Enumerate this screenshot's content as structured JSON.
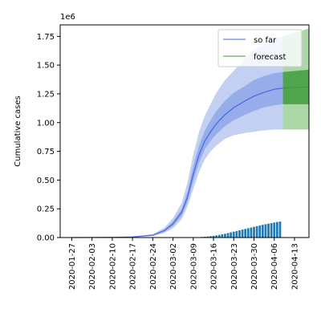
{
  "chart_data": {
    "type": "line",
    "title": "",
    "xlabel": "",
    "ylabel": "Cumulative cases",
    "y_offset_text": "1e6",
    "xlim": [
      -4,
      82
    ],
    "ylim": [
      0,
      1.85
    ],
    "x_ticks": [
      {
        "day": 0,
        "label": "2020-01-27"
      },
      {
        "day": 7,
        "label": "2020-02-03"
      },
      {
        "day": 14,
        "label": "2020-02-10"
      },
      {
        "day": 21,
        "label": "2020-02-17"
      },
      {
        "day": 28,
        "label": "2020-02-24"
      },
      {
        "day": 35,
        "label": "2020-03-02"
      },
      {
        "day": 42,
        "label": "2020-03-09"
      },
      {
        "day": 49,
        "label": "2020-03-16"
      },
      {
        "day": 56,
        "label": "2020-03-23"
      },
      {
        "day": 63,
        "label": "2020-03-30"
      },
      {
        "day": 70,
        "label": "2020-04-06"
      },
      {
        "day": 77,
        "label": "2020-04-13"
      }
    ],
    "y_ticks": [
      {
        "value": 0.0,
        "label": "0.00"
      },
      {
        "value": 0.25,
        "label": "0.25"
      },
      {
        "value": 0.5,
        "label": "0.50"
      },
      {
        "value": 0.75,
        "label": "0.75"
      },
      {
        "value": 1.0,
        "label": "1.00"
      },
      {
        "value": 1.25,
        "label": "1.25"
      },
      {
        "value": 1.5,
        "label": "1.50"
      },
      {
        "value": 1.75,
        "label": "1.75"
      }
    ],
    "model_days": [
      0,
      7,
      14,
      21,
      28,
      32,
      35,
      38,
      40,
      42,
      44,
      46,
      48,
      50,
      53,
      56,
      60,
      63,
      66,
      70,
      73
    ],
    "median": [
      0,
      0.001,
      0.002,
      0.005,
      0.02,
      0.06,
      0.12,
      0.22,
      0.35,
      0.55,
      0.72,
      0.84,
      0.92,
      0.99,
      1.07,
      1.13,
      1.19,
      1.23,
      1.26,
      1.29,
      1.3
    ],
    "inner_lower": [
      0,
      0.0008,
      0.0016,
      0.004,
      0.017,
      0.05,
      0.1,
      0.19,
      0.31,
      0.49,
      0.65,
      0.77,
      0.84,
      0.9,
      0.97,
      1.02,
      1.07,
      1.1,
      1.13,
      1.15,
      1.16
    ],
    "inner_upper": [
      0,
      0.0012,
      0.0024,
      0.006,
      0.024,
      0.07,
      0.14,
      0.25,
      0.4,
      0.62,
      0.8,
      0.93,
      1.02,
      1.1,
      1.19,
      1.26,
      1.32,
      1.37,
      1.4,
      1.43,
      1.44
    ],
    "outer_lower": [
      0,
      0.0005,
      0.001,
      0.003,
      0.013,
      0.04,
      0.08,
      0.16,
      0.27,
      0.42,
      0.57,
      0.68,
      0.75,
      0.8,
      0.86,
      0.89,
      0.91,
      0.92,
      0.93,
      0.94,
      0.94
    ],
    "outer_upper": [
      0,
      0.0015,
      0.003,
      0.008,
      0.03,
      0.085,
      0.17,
      0.3,
      0.48,
      0.72,
      0.92,
      1.06,
      1.16,
      1.26,
      1.37,
      1.45,
      1.56,
      1.63,
      1.68,
      1.73,
      1.75
    ],
    "forecast": {
      "x_start": 73,
      "x_end": 82,
      "outer_lower": 0.94,
      "outer_upper_start": 1.75,
      "outer_upper_end": 1.82,
      "inner_lower": 1.16,
      "inner_upper_start": 1.44,
      "inner_upper_end": 1.46,
      "median_start": 1.3,
      "median_end": 1.31
    },
    "observed": {
      "days": [
        42,
        43,
        44,
        45,
        46,
        47,
        48,
        49,
        50,
        51,
        52,
        53,
        54,
        55,
        56,
        57,
        58,
        59,
        60,
        61,
        62,
        63,
        64,
        65,
        66,
        67,
        68,
        69,
        70,
        71,
        72
      ],
      "values": [
        0.001,
        0.002,
        0.003,
        0.005,
        0.007,
        0.009,
        0.012,
        0.015,
        0.019,
        0.023,
        0.028,
        0.033,
        0.039,
        0.045,
        0.051,
        0.057,
        0.063,
        0.069,
        0.075,
        0.081,
        0.087,
        0.093,
        0.099,
        0.105,
        0.11,
        0.116,
        0.121,
        0.126,
        0.131,
        0.135,
        0.139
      ]
    },
    "legend": {
      "position": "top-right",
      "entries": [
        {
          "name": "so far",
          "color": "#4a66e8"
        },
        {
          "name": "forecast",
          "color": "#3a9a3a"
        }
      ]
    },
    "colors": {
      "band_outer": "#c3d0f2",
      "band_inner": "#96ade9",
      "median": "#4a66e8",
      "forecast_outer": "#acd7a7",
      "forecast_inner": "#4fa54e",
      "forecast_line": "#3a9a3a",
      "bar": "#1f77b4"
    }
  }
}
